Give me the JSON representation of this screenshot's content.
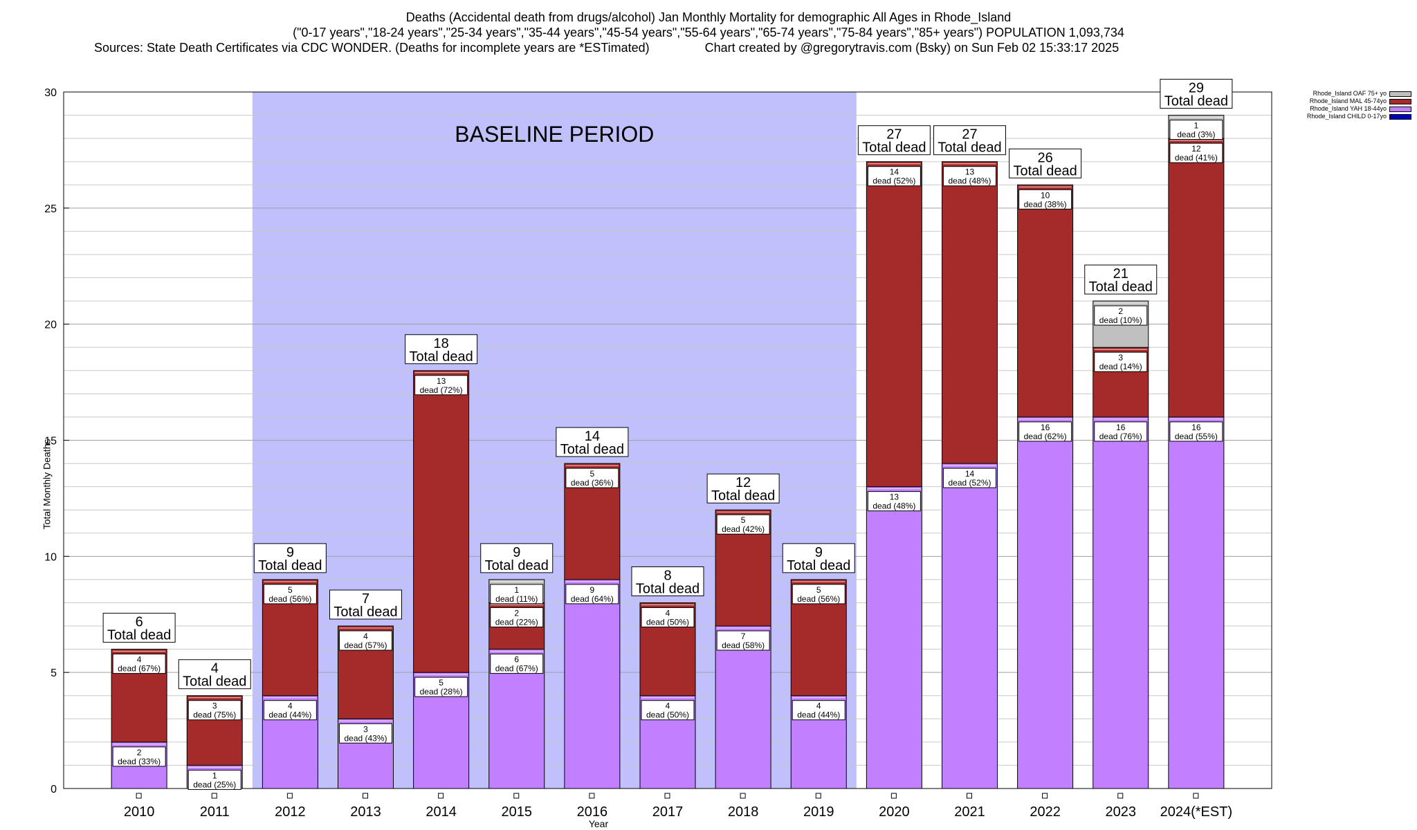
{
  "title": {
    "line1": "Deaths (Accidental death from drugs/alcohol) Jan Monthly Mortality for demographic All Ages in Rhode_Island",
    "line2": "(\"0-17 years\",\"18-24 years\",\"25-34 years\",\"35-44 years\",\"45-54 years\",\"55-64 years\",\"65-74 years\",\"75-84 years\",\"85+ years\") POPULATION 1,093,734",
    "line3_left": "Sources: State Death Certificates via CDC WONDER. (Deaths for incomplete years are *ESTimated)",
    "line3_right": "Chart created by @gregorytravis.com (Bsky) on Sun Feb 02 15:33:17 2025"
  },
  "colors": {
    "baseline_shade": "#c0c0fc",
    "yah": "#c080ff",
    "mal": "#a52a2a",
    "oaf": "#c0c0c0",
    "child": "#0000c0"
  },
  "legend": [
    {
      "label": "Rhode_Island OAF 75+ yo",
      "color": "#c0c0c0"
    },
    {
      "label": "Rhode_Island MAL 45-74yo",
      "color": "#a52a2a"
    },
    {
      "label": "Rhode_Island YAH 18-44yo",
      "color": "#c080ff"
    },
    {
      "label": "Rhode_Island CHILD 0-17yo",
      "color": "#0000c0"
    }
  ],
  "chart_data": {
    "type": "bar",
    "stacked": true,
    "xlabel": "Year",
    "ylabel": "Total Monthly Deaths",
    "ylim": [
      0,
      30
    ],
    "yticks": [
      0,
      5,
      10,
      15,
      20,
      25,
      30
    ],
    "grid": true,
    "legend_position": "top-right",
    "annotation": "BASELINE PERIOD",
    "baseline_range": [
      "2012",
      "2019"
    ],
    "total_label": "Total dead",
    "categories": [
      "2010",
      "2011",
      "2012",
      "2013",
      "2014",
      "2015",
      "2016",
      "2017",
      "2018",
      "2019",
      "2020",
      "2021",
      "2022",
      "2023",
      "2024(*EST)"
    ],
    "totals": [
      6,
      4,
      9,
      7,
      18,
      9,
      14,
      8,
      12,
      9,
      27,
      27,
      26,
      21,
      29
    ],
    "series": [
      {
        "name": "Rhode_Island YAH 18-44yo",
        "key": "yah",
        "values": [
          2,
          1,
          4,
          3,
          5,
          6,
          9,
          4,
          7,
          4,
          13,
          14,
          16,
          16,
          16
        ],
        "labels": [
          "dead (33%)",
          "dead (25%)",
          "dead (44%)",
          "dead (43%)",
          "dead (28%)",
          "dead (67%)",
          "dead (64%)",
          "dead (50%)",
          "dead (58%)",
          "dead (44%)",
          "dead (48%)",
          "dead (52%)",
          "dead (62%)",
          "dead (76%)",
          "dead (55%)"
        ]
      },
      {
        "name": "Rhode_Island MAL 45-74yo",
        "key": "mal",
        "values": [
          4,
          3,
          5,
          4,
          13,
          2,
          5,
          4,
          5,
          5,
          14,
          13,
          10,
          3,
          12
        ],
        "labels": [
          "dead (67%)",
          "dead (75%)",
          "dead (56%)",
          "dead (57%)",
          "dead (72%)",
          "dead (22%)",
          "dead (36%)",
          "dead (50%)",
          "dead (42%)",
          "dead (56%)",
          "dead (52%)",
          "dead (48%)",
          "dead (38%)",
          "dead (14%)",
          "dead (41%)"
        ]
      },
      {
        "name": "Rhode_Island OAF 75+ yo",
        "key": "oaf",
        "values": [
          0,
          0,
          0,
          0,
          0,
          1,
          0,
          0,
          0,
          0,
          0,
          0,
          0,
          2,
          1
        ],
        "labels": [
          "",
          "",
          "",
          "",
          "",
          "dead (11%)",
          "",
          "",
          "",
          "",
          "",
          "",
          "",
          "dead (10%)",
          "dead (3%)"
        ]
      }
    ]
  }
}
